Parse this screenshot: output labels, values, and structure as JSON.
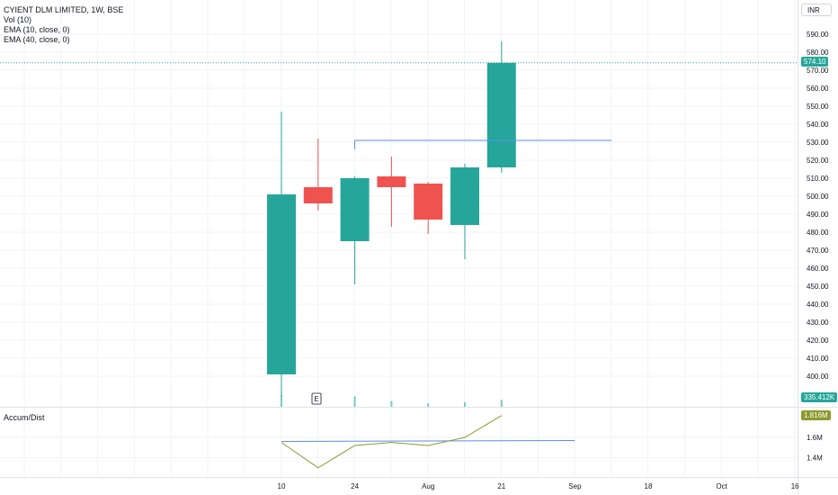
{
  "header": {
    "symbol_line": "CYIENT DLM LIMITED, 1W, BSE",
    "indicators": [
      "Vol (10)",
      "EMA (10, close, 0)",
      "EMA (40, close, 0)"
    ],
    "currency": "INR"
  },
  "colors": {
    "up": "#26a69a",
    "down": "#ef5350",
    "ema": "#5b8def",
    "accum_line": "#8b9a2c",
    "grid": "#f0f3fa",
    "price_line": "#26a69a"
  },
  "price_axis": {
    "ticks": [
      "400.00",
      "410.00",
      "420.00",
      "430.00",
      "440.00",
      "450.00",
      "460.00",
      "470.00",
      "480.00",
      "490.00",
      "500.00",
      "510.00",
      "520.00",
      "530.00",
      "540.00",
      "550.00",
      "560.00",
      "570.00",
      "580.00",
      "590.00"
    ],
    "last_price": "574.10",
    "volume_tag": "335.412K"
  },
  "time_axis": {
    "labels": [
      "10",
      "24",
      "Aug",
      "21",
      "Sep",
      "18",
      "Oct",
      "16"
    ]
  },
  "event_marker": "E",
  "chart_data": {
    "type": "candlestick",
    "title": "CYIENT DLM LIMITED, 1W, BSE",
    "ylim": [
      390,
      595
    ],
    "last_price": 574.1,
    "candles": [
      {
        "open": 401,
        "high": 547,
        "low": 389,
        "close": 501
      },
      {
        "open": 505,
        "high": 532,
        "low": 492,
        "close": 496
      },
      {
        "open": 475,
        "high": 511,
        "low": 451,
        "close": 510
      },
      {
        "open": 511,
        "high": 522,
        "low": 483,
        "close": 505
      },
      {
        "open": 507,
        "high": 508,
        "low": 479,
        "close": 487
      },
      {
        "open": 484,
        "high": 518,
        "low": 465,
        "close": 516
      },
      {
        "open": 516,
        "high": 586,
        "low": 513,
        "close": 574.1
      }
    ],
    "volume": [
      1.0,
      0,
      0.9,
      0.5,
      0.3,
      0.4,
      0.6
    ],
    "ema_line": {
      "from_index": 2,
      "to_index": 9,
      "value": 531
    },
    "accum_dist": {
      "label": "Accum/Dist",
      "value_tag": "1.816M",
      "ticks": [
        "1.4M",
        "1.6M"
      ],
      "ylim": [
        1.3,
        1.85
      ],
      "values": [
        1.55,
        1.3,
        1.52,
        1.55,
        1.52,
        1.6,
        1.816
      ],
      "ema": {
        "from_index": 0,
        "to_index": 8,
        "value": 1.56
      }
    }
  }
}
